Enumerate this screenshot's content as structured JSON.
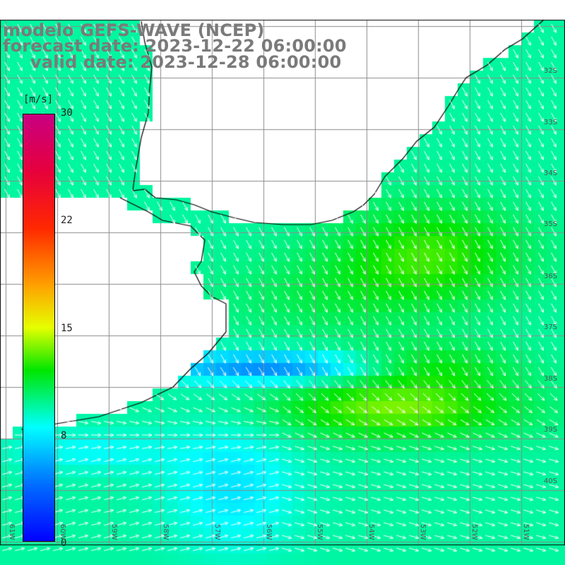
{
  "title": {
    "line1": "modelo GEFS-WAVE (NCEP)",
    "line2": "forecast date: 2023-12-22 06:00:00",
    "line3": "valid date: 2023-12-28 06:00:00"
  },
  "colorbar": {
    "units": "[m/s]",
    "ticks": [
      "30",
      "22",
      "15",
      "8",
      "0"
    ],
    "tick_values": [
      30,
      22,
      15,
      8,
      0
    ]
  },
  "lat_labels": [
    "32S",
    "33S",
    "34S",
    "35S",
    "36S",
    "37S",
    "38S",
    "39S",
    "40S"
  ],
  "lon_labels": [
    "61W",
    "60W",
    "59W",
    "58W",
    "57W",
    "56W",
    "55W",
    "54W",
    "53W",
    "52W",
    "51W"
  ],
  "colors": {
    "land": "#ffffff",
    "grid": "#8c8c8c",
    "coast": "#000000",
    "arrow": "#ffffff",
    "title": "#7a7a7a"
  },
  "map_data": {
    "variable": "wind speed",
    "units": "m/s",
    "scale_min": 0,
    "scale_max": 30,
    "region": "Rio de la Plata / Uruguay / southern Brazil coast"
  }
}
